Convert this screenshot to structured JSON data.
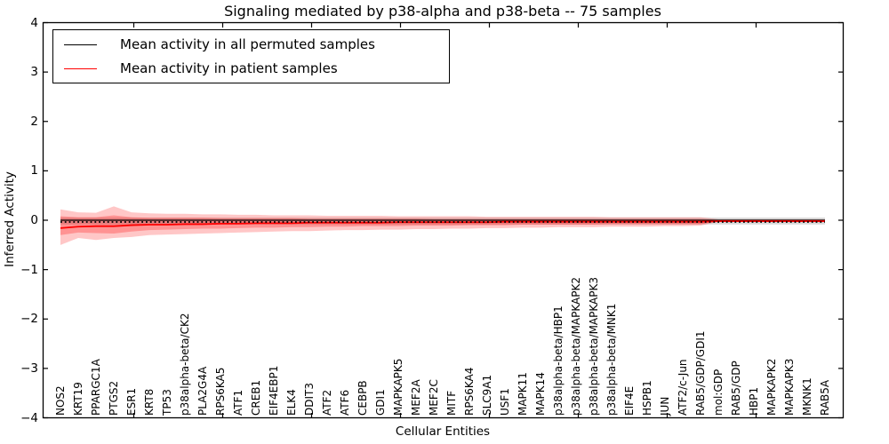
{
  "figure": {
    "title": "Signaling mediated by p38-alpha and p38-beta -- 75 samples",
    "xlabel": "Cellular Entities",
    "ylabel": "Inferred Activity",
    "background_color": "#ffffff",
    "axis_color": "#000000"
  },
  "legend": {
    "items": [
      {
        "label": "Mean activity in all permuted samples",
        "color": "#000000"
      },
      {
        "label": "Mean activity in patient samples",
        "color": "#ff0000"
      }
    ]
  },
  "chart_data": {
    "type": "line",
    "title": "Signaling mediated by p38-alpha and p38-beta -- 75 samples",
    "xlabel": "Cellular Entities",
    "ylabel": "Inferred Activity",
    "ylim": [
      -4,
      4
    ],
    "grid": false,
    "legend_position": "upper-left",
    "y_ticks": {
      "values": [
        4,
        3,
        2,
        1,
        0,
        -1,
        -2,
        -3,
        -4
      ],
      "labels": [
        "4",
        "3",
        "2",
        "1",
        "0",
        "−1",
        "−2",
        "−3",
        "−4"
      ]
    },
    "categories": [
      "NOS2",
      "KRT19",
      "PPARGC1A",
      "PTGS2",
      "ESR1",
      "KRT8",
      "TP53",
      "p38alpha-beta/CK2",
      "PLA2G4A",
      "RPS6KA5",
      "ATF1",
      "CREB1",
      "EIF4EBP1",
      "ELK4",
      "DDIT3",
      "ATF2",
      "ATF6",
      "CEBPB",
      "GDI1",
      "MAPKAPK5",
      "MEF2A",
      "MEF2C",
      "MITF",
      "RPS6KA4",
      "SLC9A1",
      "USF1",
      "MAPK11",
      "MAPK14",
      "p38alpha-beta/HBP1",
      "p38alpha-beta/MAPKAPK2",
      "p38alpha-beta/MAPKAPK3",
      "p38alpha-beta/MNK1",
      "EIF4E",
      "HSPB1",
      "JUN",
      "ATF2/c-Jun",
      "RAB5/GDP/GDI1",
      "mol:GDP",
      "RAB5/GDP",
      "HBP1",
      "MAPKAPK2",
      "MAPKAPK3",
      "MKNK1",
      "RAB5A"
    ],
    "series": [
      {
        "name": "Mean activity in all permuted samples",
        "color": "#000000",
        "mean": 0.0,
        "band_upper": 0.055,
        "band_lower": -0.085,
        "band_color": "#000000",
        "band_opacity": 0.15
      },
      {
        "name": "Mean activity in patient samples",
        "color": "#ff0000",
        "values": [
          -0.16,
          -0.13,
          -0.12,
          -0.12,
          -0.1,
          -0.09,
          -0.09,
          -0.08,
          -0.08,
          -0.07,
          -0.07,
          -0.06,
          -0.06,
          -0.06,
          -0.05,
          -0.05,
          -0.05,
          -0.05,
          -0.05,
          -0.04,
          -0.04,
          -0.04,
          -0.04,
          -0.04,
          -0.04,
          -0.03,
          -0.03,
          -0.03,
          -0.03,
          -0.03,
          -0.03,
          -0.03,
          -0.03,
          -0.03,
          -0.03,
          -0.03,
          -0.03,
          -0.02,
          -0.02,
          -0.02,
          -0.02,
          -0.02,
          -0.02,
          -0.02
        ],
        "band_outer_upper": [
          0.22,
          0.16,
          0.15,
          0.28,
          0.16,
          0.14,
          0.13,
          0.13,
          0.12,
          0.12,
          0.11,
          0.11,
          0.1,
          0.1,
          0.1,
          0.09,
          0.09,
          0.09,
          0.09,
          0.08,
          0.08,
          0.08,
          0.08,
          0.08,
          0.07,
          0.07,
          0.07,
          0.07,
          0.07,
          0.07,
          0.07,
          0.06,
          0.06,
          0.06,
          0.06,
          0.06,
          0.06,
          0.02,
          0.02,
          0.02,
          0.02,
          0.02,
          0.02,
          0.02
        ],
        "band_outer_lower": [
          -0.5,
          -0.36,
          -0.4,
          -0.36,
          -0.34,
          -0.3,
          -0.29,
          -0.28,
          -0.27,
          -0.26,
          -0.25,
          -0.24,
          -0.23,
          -0.22,
          -0.22,
          -0.21,
          -0.2,
          -0.2,
          -0.19,
          -0.19,
          -0.18,
          -0.18,
          -0.17,
          -0.17,
          -0.16,
          -0.16,
          -0.15,
          -0.15,
          -0.14,
          -0.14,
          -0.14,
          -0.13,
          -0.13,
          -0.13,
          -0.12,
          -0.12,
          -0.11,
          -0.03,
          -0.03,
          -0.03,
          -0.03,
          -0.03,
          -0.03,
          -0.03
        ],
        "band_inner_upper": [
          0.08,
          0.06,
          0.06,
          0.1,
          0.06,
          0.05,
          0.05,
          0.05,
          0.05,
          0.04,
          0.04,
          0.04,
          0.04,
          0.04,
          0.03,
          0.03,
          0.03,
          0.03,
          0.03,
          0.03,
          0.03,
          0.02,
          0.02,
          0.02,
          0.02,
          0.02,
          0.02,
          0.02,
          0.02,
          0.02,
          0.02,
          0.02,
          0.02,
          0.02,
          0.02,
          0.02,
          0.02,
          0.01,
          0.01,
          0.01,
          0.01,
          0.01,
          0.01,
          0.01
        ],
        "band_inner_lower": [
          -0.3,
          -0.25,
          -0.26,
          -0.27,
          -0.23,
          -0.2,
          -0.19,
          -0.18,
          -0.17,
          -0.17,
          -0.16,
          -0.15,
          -0.15,
          -0.14,
          -0.14,
          -0.13,
          -0.13,
          -0.12,
          -0.12,
          -0.12,
          -0.11,
          -0.11,
          -0.11,
          -0.1,
          -0.1,
          -0.1,
          -0.09,
          -0.09,
          -0.09,
          -0.09,
          -0.09,
          -0.08,
          -0.08,
          -0.08,
          -0.08,
          -0.08,
          -0.08,
          -0.02,
          -0.02,
          -0.02,
          -0.02,
          -0.02,
          -0.02,
          -0.02
        ],
        "band_color": "#ff0000",
        "band_opacity": 0.22
      }
    ]
  }
}
